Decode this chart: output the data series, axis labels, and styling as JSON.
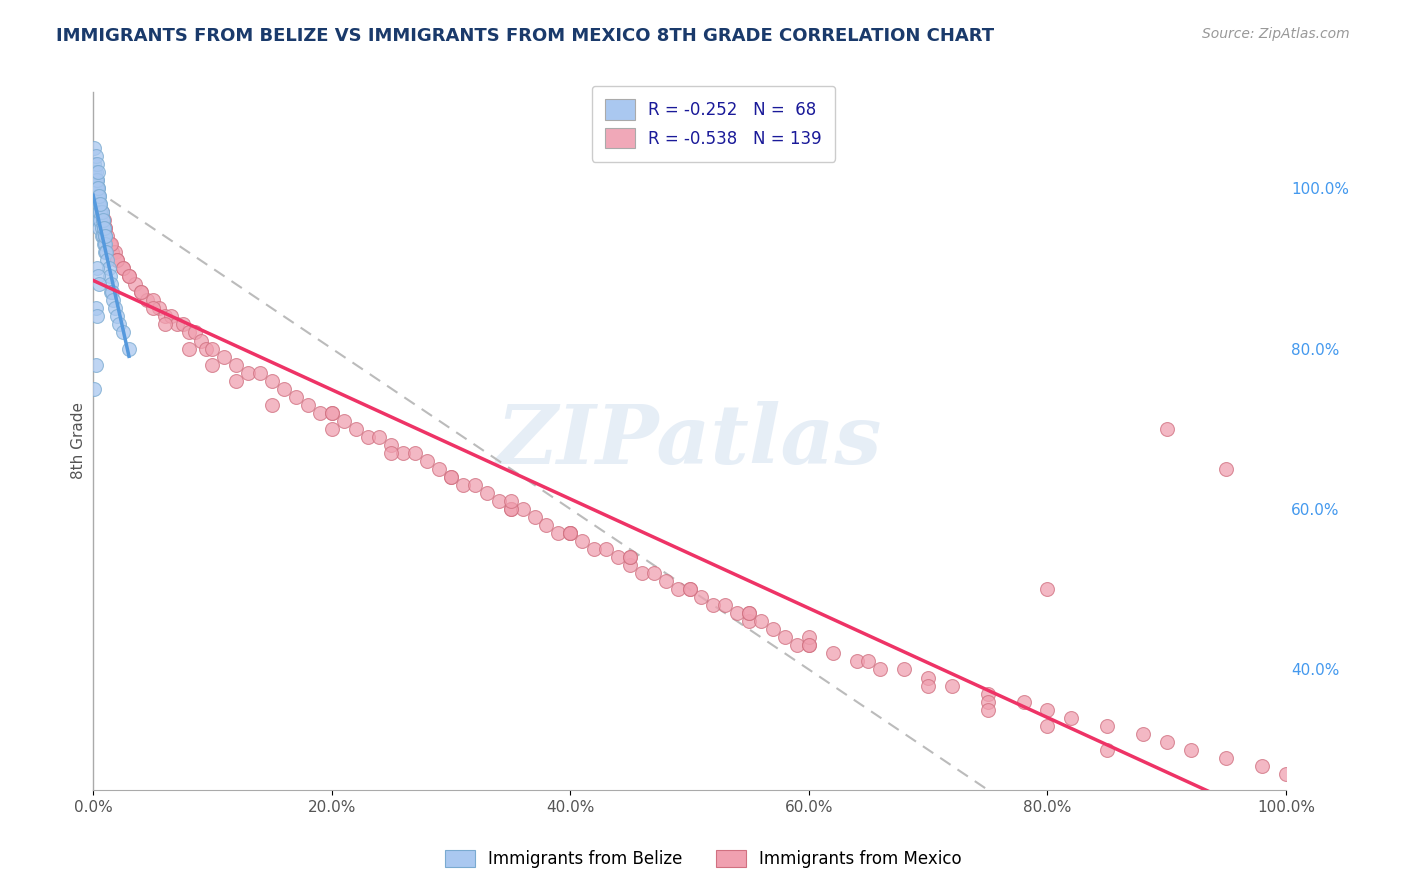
{
  "title": "IMMIGRANTS FROM BELIZE VS IMMIGRANTS FROM MEXICO 8TH GRADE CORRELATION CHART",
  "source": "Source: ZipAtlas.com",
  "ylabel": "8th Grade",
  "xticklabels": [
    "0.0%",
    "20.0%",
    "40.0%",
    "60.0%",
    "80.0%",
    "100.0%"
  ],
  "yticklabels_right": [
    "40.0%",
    "60.0%",
    "80.0%",
    "100.0%"
  ],
  "xlim": [
    0.0,
    1.0
  ],
  "ylim": [
    0.25,
    1.12
  ],
  "belize_color": "#aac8f0",
  "belize_edge": "#7aaad0",
  "mexico_color": "#f0a0b0",
  "mexico_edge": "#d07080",
  "regression_belize_color": "#5599dd",
  "regression_mexico_color": "#ee3366",
  "diagonal_color": "#bbbbbb",
  "background_color": "#ffffff",
  "grid_color": "#dddddd",
  "title_color": "#1a3a6b",
  "watermark": "ZIPatlas",
  "right_tick_color": "#4499ee",
  "belize_x": [
    0.001,
    0.001,
    0.002,
    0.002,
    0.002,
    0.003,
    0.003,
    0.003,
    0.003,
    0.004,
    0.004,
    0.004,
    0.005,
    0.005,
    0.005,
    0.005,
    0.006,
    0.006,
    0.007,
    0.007,
    0.007,
    0.008,
    0.008,
    0.009,
    0.009,
    0.01,
    0.01,
    0.01,
    0.011,
    0.012,
    0.013,
    0.014,
    0.015,
    0.015,
    0.016,
    0.017,
    0.018,
    0.02,
    0.022,
    0.025,
    0.001,
    0.002,
    0.003,
    0.004,
    0.005,
    0.006,
    0.007,
    0.008,
    0.009,
    0.01,
    0.001,
    0.002,
    0.003,
    0.004,
    0.005,
    0.006,
    0.001,
    0.002,
    0.003,
    0.004,
    0.03,
    0.002,
    0.003,
    0.004,
    0.005,
    0.001,
    0.002,
    0.003
  ],
  "belize_y": [
    1.0,
    0.99,
    1.0,
    0.98,
    0.97,
    1.01,
    0.99,
    0.98,
    0.97,
    1.0,
    0.98,
    0.96,
    0.99,
    0.97,
    0.96,
    0.95,
    0.98,
    0.96,
    0.97,
    0.95,
    0.94,
    0.96,
    0.94,
    0.95,
    0.93,
    0.94,
    0.93,
    0.92,
    0.92,
    0.91,
    0.9,
    0.89,
    0.88,
    0.87,
    0.87,
    0.86,
    0.85,
    0.84,
    0.83,
    0.82,
    1.02,
    1.01,
    1.0,
    0.99,
    0.98,
    0.97,
    0.97,
    0.96,
    0.95,
    0.94,
    1.03,
    1.02,
    1.01,
    1.0,
    0.99,
    0.98,
    1.05,
    1.04,
    1.03,
    1.02,
    0.8,
    0.78,
    0.9,
    0.89,
    0.88,
    0.75,
    0.85,
    0.84
  ],
  "mexico_x": [
    0.001,
    0.002,
    0.003,
    0.004,
    0.005,
    0.006,
    0.007,
    0.008,
    0.009,
    0.01,
    0.012,
    0.014,
    0.016,
    0.018,
    0.02,
    0.025,
    0.03,
    0.035,
    0.04,
    0.045,
    0.05,
    0.055,
    0.06,
    0.065,
    0.07,
    0.075,
    0.08,
    0.085,
    0.09,
    0.095,
    0.1,
    0.11,
    0.12,
    0.13,
    0.14,
    0.15,
    0.16,
    0.17,
    0.18,
    0.19,
    0.2,
    0.21,
    0.22,
    0.23,
    0.24,
    0.25,
    0.26,
    0.27,
    0.28,
    0.29,
    0.3,
    0.31,
    0.32,
    0.33,
    0.34,
    0.35,
    0.36,
    0.37,
    0.38,
    0.39,
    0.4,
    0.41,
    0.42,
    0.43,
    0.44,
    0.45,
    0.46,
    0.47,
    0.48,
    0.49,
    0.5,
    0.51,
    0.52,
    0.53,
    0.54,
    0.55,
    0.56,
    0.57,
    0.58,
    0.59,
    0.6,
    0.62,
    0.64,
    0.66,
    0.68,
    0.7,
    0.72,
    0.75,
    0.78,
    0.8,
    0.82,
    0.85,
    0.88,
    0.9,
    0.92,
    0.95,
    0.98,
    1.0,
    0.003,
    0.005,
    0.008,
    0.01,
    0.015,
    0.02,
    0.025,
    0.03,
    0.04,
    0.05,
    0.06,
    0.08,
    0.1,
    0.12,
    0.15,
    0.2,
    0.25,
    0.3,
    0.35,
    0.4,
    0.45,
    0.5,
    0.55,
    0.6,
    0.65,
    0.7,
    0.75,
    0.8,
    0.85,
    0.9,
    0.95,
    0.2,
    0.4,
    0.6,
    0.8,
    0.35,
    0.55,
    0.75,
    0.45
  ],
  "mexico_y": [
    1.01,
    1.0,
    0.99,
    0.98,
    0.98,
    0.97,
    0.97,
    0.96,
    0.96,
    0.95,
    0.94,
    0.93,
    0.92,
    0.92,
    0.91,
    0.9,
    0.89,
    0.88,
    0.87,
    0.86,
    0.86,
    0.85,
    0.84,
    0.84,
    0.83,
    0.83,
    0.82,
    0.82,
    0.81,
    0.8,
    0.8,
    0.79,
    0.78,
    0.77,
    0.77,
    0.76,
    0.75,
    0.74,
    0.73,
    0.72,
    0.72,
    0.71,
    0.7,
    0.69,
    0.69,
    0.68,
    0.67,
    0.67,
    0.66,
    0.65,
    0.64,
    0.63,
    0.63,
    0.62,
    0.61,
    0.6,
    0.6,
    0.59,
    0.58,
    0.57,
    0.57,
    0.56,
    0.55,
    0.55,
    0.54,
    0.53,
    0.52,
    0.52,
    0.51,
    0.5,
    0.5,
    0.49,
    0.48,
    0.48,
    0.47,
    0.46,
    0.46,
    0.45,
    0.44,
    0.43,
    0.43,
    0.42,
    0.41,
    0.4,
    0.4,
    0.39,
    0.38,
    0.37,
    0.36,
    0.35,
    0.34,
    0.33,
    0.32,
    0.31,
    0.3,
    0.29,
    0.28,
    0.27,
    0.98,
    0.97,
    0.96,
    0.95,
    0.93,
    0.91,
    0.9,
    0.89,
    0.87,
    0.85,
    0.83,
    0.8,
    0.78,
    0.76,
    0.73,
    0.7,
    0.67,
    0.64,
    0.6,
    0.57,
    0.54,
    0.5,
    0.47,
    0.44,
    0.41,
    0.38,
    0.36,
    0.33,
    0.3,
    0.7,
    0.65,
    0.72,
    0.57,
    0.43,
    0.5,
    0.61,
    0.47,
    0.35,
    0.54
  ]
}
